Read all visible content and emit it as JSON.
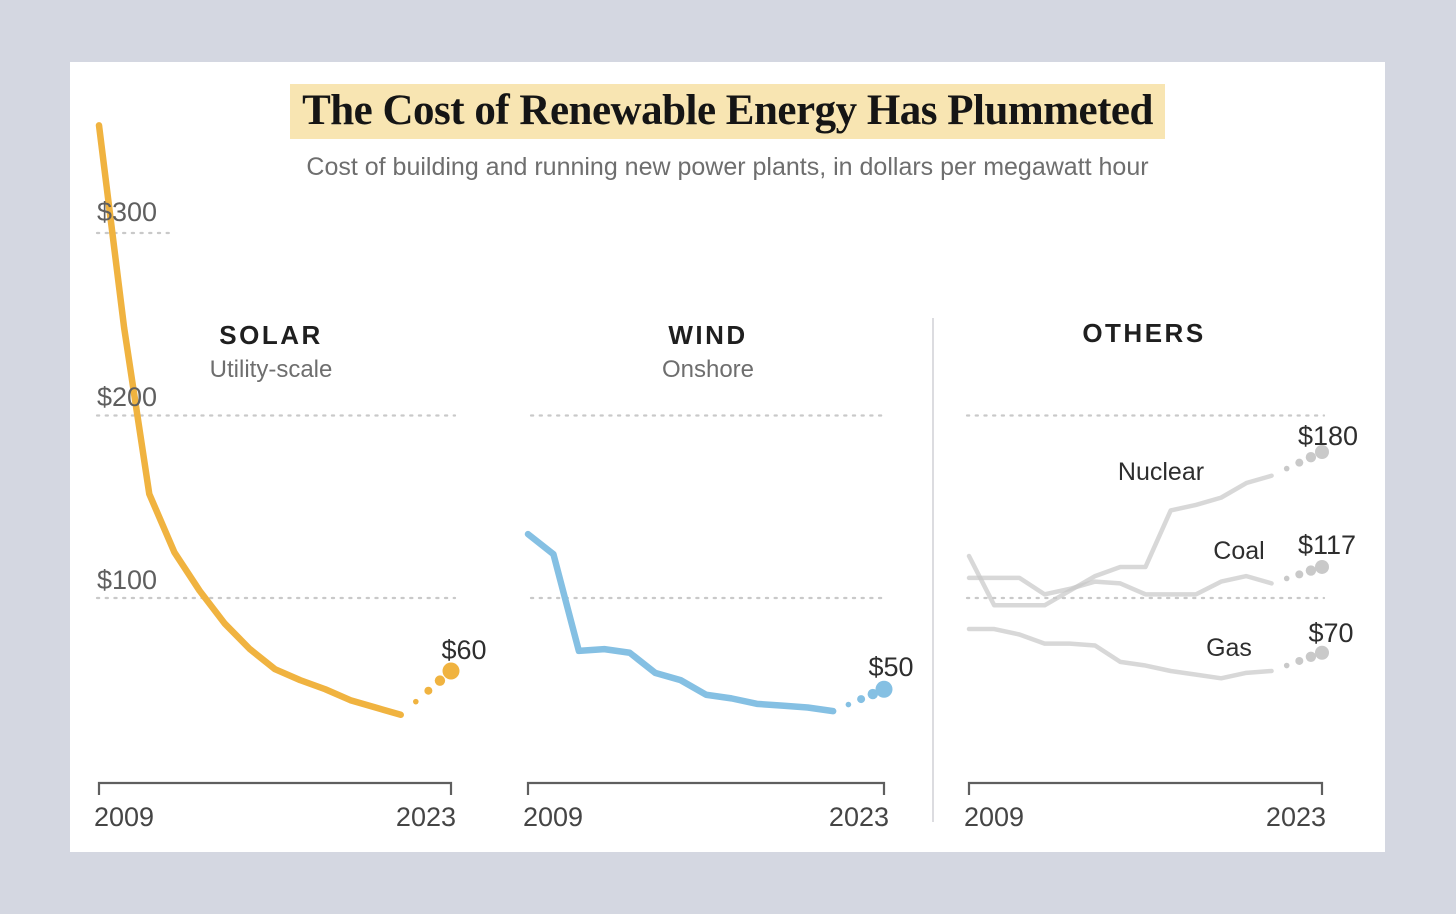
{
  "page": {
    "background_color": "#d4d7e1",
    "card_background_color": "#ffffff"
  },
  "chart_data": {
    "type": "line",
    "title": "The Cost of Renewable Energy Has Plummeted",
    "title_highlight_color": "#f8e5b2",
    "subtitle": "Cost of building and running new power plants, in dollars per megawatt hour",
    "unit": "dollars per megawatt hour",
    "x_range": [
      2009,
      2023
    ],
    "years": [
      2009,
      2010,
      2011,
      2012,
      2013,
      2014,
      2015,
      2016,
      2017,
      2018,
      2019,
      2020,
      2021
    ],
    "y_axis": [
      {
        "label": "$300",
        "value": 300
      },
      {
        "label": "$200",
        "value": 200
      },
      {
        "label": "$100",
        "value": 100
      }
    ],
    "grid": "dotted horizontal gridlines at $100, $200, $300",
    "legend_position": "inline labels on lines",
    "panels": [
      {
        "id": "solar",
        "heading": "SOLAR",
        "subheading": "Utility-scale",
        "x_labels": [
          "2009",
          "2023"
        ],
        "series": [
          {
            "id": "solar",
            "name": "Solar",
            "color": "#f0b340",
            "values": [
              359,
              248,
              157,
              125,
              104,
              86,
              72,
              61,
              55,
              50,
              44,
              40,
              36
            ],
            "end_year": 2023,
            "end_value": 60,
            "end_label": "$60",
            "projection_style": "dotted"
          }
        ]
      },
      {
        "id": "wind",
        "heading": "WIND",
        "subheading": "Onshore",
        "x_labels": [
          "2009",
          "2023"
        ],
        "series": [
          {
            "id": "wind",
            "name": "Wind",
            "color": "#85c0e3",
            "values": [
              135,
              124,
              71,
              72,
              70,
              59,
              55,
              47,
              45,
              42,
              41,
              40,
              38
            ],
            "end_year": 2023,
            "end_value": 50,
            "end_label": "$50",
            "projection_style": "dotted"
          }
        ]
      },
      {
        "id": "others",
        "heading": "OTHERS",
        "subheading": "",
        "x_labels": [
          "2009",
          "2023"
        ],
        "series": [
          {
            "id": "nuclear",
            "name": "Nuclear",
            "color": "#c9c9c9",
            "values": [
              123,
              96,
              96,
              96,
              104,
              112,
              117,
              117,
              148,
              151,
              155,
              163,
              167
            ],
            "end_year": 2023,
            "end_value": 180,
            "end_label": "$180",
            "projection_style": "dotted"
          },
          {
            "id": "coal",
            "name": "Coal",
            "color": "#c9c9c9",
            "values": [
              111,
              111,
              111,
              102,
              105,
              109,
              108,
              102,
              102,
              102,
              109,
              112,
              108
            ],
            "end_year": 2023,
            "end_value": 117,
            "end_label": "$117",
            "projection_style": "dotted"
          },
          {
            "id": "gas",
            "name": "Gas",
            "color": "#c9c9c9",
            "values": [
              83,
              83,
              80,
              75,
              75,
              74,
              65,
              63,
              60,
              58,
              56,
              59,
              60
            ],
            "end_year": 2023,
            "end_value": 70,
            "end_label": "$70",
            "projection_style": "dotted"
          }
        ]
      }
    ]
  }
}
